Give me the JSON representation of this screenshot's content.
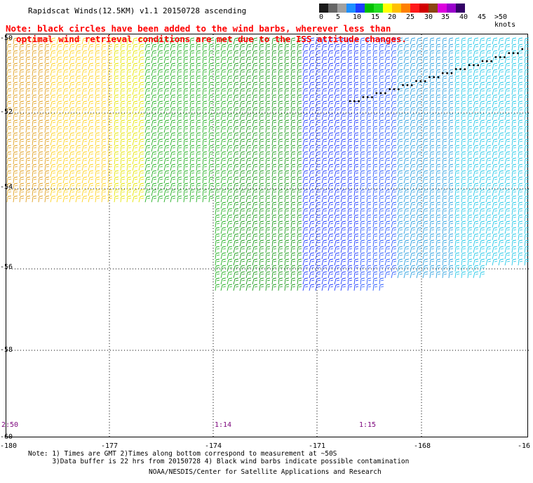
{
  "title": "Rapidscat Winds(12.5KM) v1.1 20150728 ascending",
  "note": {
    "line1": "Note: black circles have been added to the wind barbs, wherever less than",
    "line2": "  optimal wind retrieval conditions are met due to the ISS attitude changes."
  },
  "legend": {
    "colors": [
      "#1a1a1a",
      "#666666",
      "#a0a0a0",
      "#1e90ff",
      "#1e3cff",
      "#00c000",
      "#22dd22",
      "#ffff00",
      "#ffc000",
      "#ff8000",
      "#ff1a1a",
      "#d20000",
      "#8b4513",
      "#dd00dd",
      "#9900cc",
      "#330066"
    ],
    "labels": [
      "0",
      "5",
      "10",
      "15",
      "20",
      "25",
      "30",
      "35",
      "40",
      "45",
      ">50 knots"
    ]
  },
  "lat_labels": [
    "-50",
    "-52",
    "-54",
    "-56",
    "-58",
    "-60"
  ],
  "lon_labels": [
    "-180",
    "-177",
    "-174",
    "-171",
    "-168",
    "-16"
  ],
  "time_labels": [
    "2:50",
    "1:14",
    "1:15"
  ],
  "footnote": {
    "line1": "Note: 1) Times are GMT 2)Times along bottom correspond to measurement at ~50S",
    "line2": "      3)Data buffer is 22 hrs from 20150728 4) Black wind barbs indicate possible contamination"
  },
  "credit": "NOAA/NESDIS/Center for Satellite Applications and Research",
  "map_data": {
    "lon_range": [
      -180,
      -165
    ],
    "lat_range": [
      -60,
      -50
    ],
    "grid": "dotted"
  }
}
